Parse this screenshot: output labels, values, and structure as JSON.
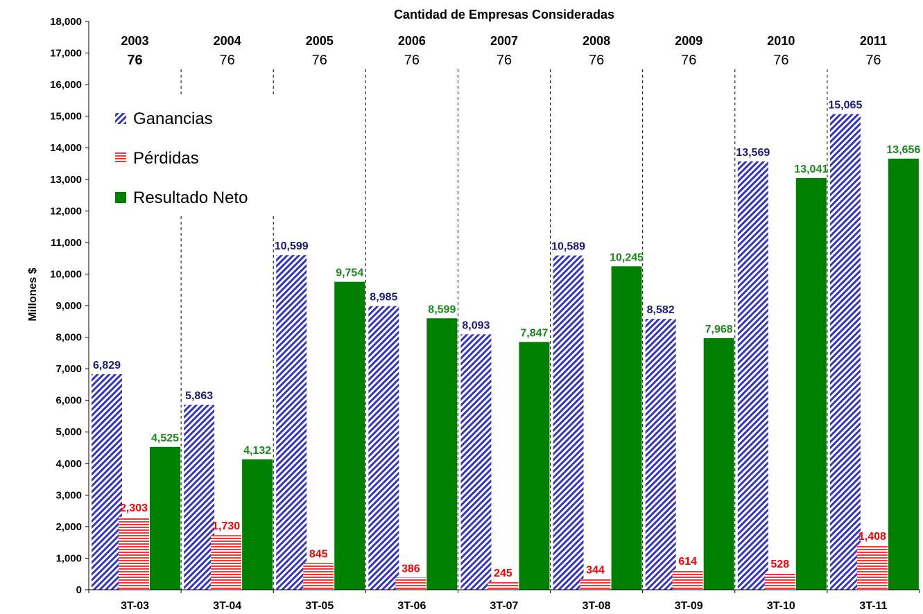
{
  "chart_data": {
    "type": "bar",
    "title": "Cantidad de Empresas Consideradas",
    "ylabel": "Millones $",
    "xlabel": "",
    "ylim": [
      0,
      18000
    ],
    "ytick_step": 1000,
    "grid": false,
    "legend_position": "top-left",
    "categories": [
      "3T-03",
      "3T-04",
      "3T-05",
      "3T-06",
      "3T-07",
      "3T-08",
      "3T-09",
      "3T-10",
      "3T-11"
    ],
    "years": [
      "2003",
      "2004",
      "2005",
      "2006",
      "2007",
      "2008",
      "2009",
      "2010",
      "2011"
    ],
    "companies": [
      "76",
      "76",
      "76",
      "76",
      "76",
      "76",
      "76",
      "76",
      "76"
    ],
    "series": [
      {
        "name": "Ganancias",
        "values": [
          6829,
          5863,
          10599,
          8985,
          8093,
          10589,
          8582,
          13569,
          15065
        ],
        "color": "#3333cc",
        "label_color": "#1a1a80",
        "pattern": "diagonal"
      },
      {
        "name": "Pérdidas",
        "values": [
          2303,
          1730,
          845,
          386,
          245,
          344,
          614,
          528,
          1408
        ],
        "color": "#ff3333",
        "label_color": "#ff0000",
        "pattern": "horizontal"
      },
      {
        "name": "Resultado Neto",
        "values": [
          4525,
          4132,
          9754,
          8599,
          7847,
          10245,
          7968,
          13041,
          13656
        ],
        "color": "#008000",
        "label_color": "#1a8a1a",
        "pattern": "solid"
      }
    ]
  }
}
